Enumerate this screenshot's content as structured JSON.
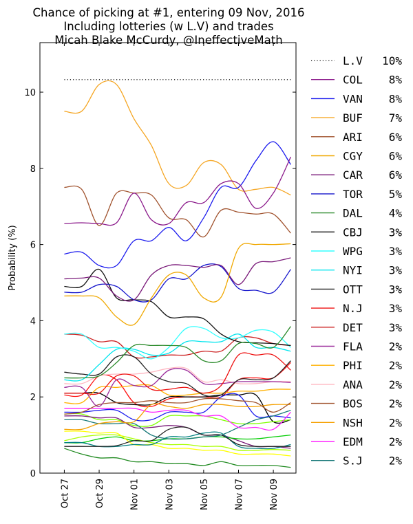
{
  "chart_data": {
    "type": "line",
    "title": [
      "Chance of picking at #1, entering 09 Nov, 2016",
      "Including lotteries (w L.V) and trades",
      "Micah Blake McCurdy, @IneffectiveMath"
    ],
    "xlabel": "",
    "ylabel": "Probability (%)",
    "ylim": [
      0,
      11.3
    ],
    "yticks": [
      "0",
      "2",
      "4",
      "6",
      "8",
      "10"
    ],
    "xlim": [
      -1.4,
      13.3
    ],
    "xticks": [
      "Oct 27",
      "Oct 29",
      "Nov 01",
      "Nov 03",
      "Nov 05",
      "Nov 07",
      "Nov 09"
    ],
    "grid": false,
    "legend_position": "outside-right",
    "x": [
      0,
      1,
      2,
      3,
      4,
      5,
      6,
      7,
      8,
      9,
      10,
      11,
      12,
      13
    ],
    "series": [
      {
        "name": "L.V",
        "pct": "10%",
        "color": "#333333",
        "style": "dotted",
        "values": [
          10.33,
          10.33,
          10.33,
          10.33,
          10.33,
          10.33,
          10.33,
          10.33,
          10.33,
          10.33,
          10.33,
          10.33,
          10.33,
          10.33
        ]
      },
      {
        "name": "COL",
        "pct": "8%",
        "color": "#8b1a8b",
        "values": [
          6.55,
          6.57,
          6.55,
          6.57,
          7.35,
          6.65,
          6.55,
          7.1,
          7.1,
          7.6,
          7.6,
          6.95,
          7.35,
          8.3
        ]
      },
      {
        "name": "VAN",
        "pct": "8%",
        "color": "#1a1aee",
        "values": [
          5.75,
          5.8,
          5.45,
          5.45,
          6.1,
          6.1,
          6.45,
          6.1,
          6.7,
          7.5,
          7.5,
          8.2,
          8.7,
          8.1
        ]
      },
      {
        "name": "BUF",
        "pct": "7%",
        "color": "#f5a623",
        "values": [
          9.5,
          9.5,
          10.2,
          10.2,
          9.3,
          8.6,
          7.6,
          7.55,
          8.15,
          8.1,
          7.45,
          7.45,
          7.5,
          7.3
        ]
      },
      {
        "name": "ARI",
        "pct": "6%",
        "color": "#a0522d",
        "values": [
          7.5,
          7.45,
          6.5,
          7.35,
          7.35,
          7.3,
          6.7,
          6.65,
          6.2,
          6.9,
          6.85,
          6.8,
          6.8,
          6.3
        ]
      },
      {
        "name": "CGY",
        "pct": "6%",
        "color": "#f0a800",
        "values": [
          4.65,
          4.65,
          4.6,
          4.1,
          3.9,
          4.6,
          5.2,
          5.2,
          4.6,
          4.62,
          5.9,
          6.0,
          6.0,
          6.02
        ]
      },
      {
        "name": "CAR",
        "pct": "6%",
        "color": "#7a1a7a",
        "values": [
          5.1,
          5.12,
          5.12,
          4.65,
          4.55,
          5.2,
          5.45,
          5.45,
          5.4,
          5.45,
          4.95,
          5.5,
          5.55,
          5.65
        ]
      },
      {
        "name": "TOR",
        "pct": "5%",
        "color": "#1515cc",
        "values": [
          4.75,
          4.75,
          4.95,
          4.9,
          4.55,
          4.55,
          5.1,
          5.1,
          5.45,
          5.42,
          4.85,
          4.8,
          4.75,
          5.35
        ]
      },
      {
        "name": "DAL",
        "pct": "4%",
        "color": "#2a8a2a",
        "values": [
          2.5,
          2.5,
          2.55,
          2.9,
          3.35,
          3.35,
          3.35,
          3.3,
          2.95,
          2.95,
          3.4,
          3.4,
          3.3,
          3.85
        ]
      },
      {
        "name": "CBJ",
        "pct": "3%",
        "color": "#111111",
        "values": [
          4.9,
          4.9,
          5.35,
          4.6,
          4.55,
          4.5,
          4.1,
          4.1,
          4.05,
          3.65,
          3.45,
          3.42,
          3.4,
          3.35
        ]
      },
      {
        "name": "WPG",
        "pct": "3%",
        "color": "#33ffff",
        "values": [
          3.65,
          3.65,
          3.3,
          3.3,
          3.2,
          3.0,
          3.3,
          3.8,
          3.8,
          3.55,
          3.55,
          3.75,
          3.7,
          3.3
        ]
      },
      {
        "name": "NYI",
        "pct": "3%",
        "color": "#00e5ee",
        "values": [
          2.45,
          2.45,
          2.85,
          3.25,
          3.25,
          3.1,
          3.15,
          3.45,
          3.45,
          3.45,
          3.65,
          3.3,
          3.3,
          3.2
        ]
      },
      {
        "name": "OTT",
        "pct": "3%",
        "color": "#222222",
        "values": [
          2.65,
          2.6,
          2.6,
          3.05,
          3.05,
          2.6,
          2.4,
          2.35,
          2.05,
          2.05,
          2.45,
          2.45,
          2.5,
          2.95
        ]
      },
      {
        "name": "N.J",
        "pct": "3%",
        "color": "#ee1111",
        "values": [
          2.1,
          2.1,
          2.1,
          2.55,
          2.55,
          2.2,
          2.2,
          2.25,
          2.1,
          2.3,
          3.1,
          3.1,
          3.1,
          2.7
        ]
      },
      {
        "name": "DET",
        "pct": "3%",
        "color": "#cc2222",
        "values": [
          3.65,
          3.62,
          3.45,
          3.45,
          3.05,
          3.05,
          3.1,
          3.1,
          3.2,
          3.2,
          3.55,
          3.55,
          3.4,
          3.35
        ]
      },
      {
        "name": "FLA",
        "pct": "2%",
        "color": "#9a2a9a",
        "values": [
          2.25,
          2.25,
          1.75,
          2.45,
          2.3,
          2.3,
          2.7,
          2.7,
          2.35,
          2.35,
          2.4,
          2.4,
          2.4,
          2.38
        ]
      },
      {
        "name": "PHI",
        "pct": "2%",
        "color": "#ffb000",
        "values": [
          1.85,
          1.85,
          2.25,
          2.25,
          2.3,
          2.3,
          2.05,
          2.05,
          2.1,
          2.1,
          2.15,
          2.15,
          2.2,
          2.2
        ]
      },
      {
        "name": "ANA",
        "pct": "2%",
        "color": "#ffb6c1",
        "values": [
          2.35,
          2.35,
          2.55,
          2.6,
          2.6,
          2.65,
          2.75,
          2.75,
          2.4,
          2.45,
          2.35,
          2.35,
          2.4,
          2.4
        ]
      },
      {
        "name": "BOS",
        "pct": "2%",
        "color": "#a0522d",
        "values": [
          1.55,
          1.6,
          1.8,
          1.85,
          1.85,
          1.9,
          1.85,
          1.85,
          1.95,
          1.95,
          1.9,
          1.85,
          1.6,
          1.85
        ]
      },
      {
        "name": "NSH",
        "pct": "2%",
        "color": "#f5a000",
        "values": [
          1.15,
          1.15,
          1.3,
          1.35,
          1.35,
          1.8,
          1.75,
          1.7,
          1.8,
          1.8,
          1.75,
          1.75,
          1.8,
          1.8
        ]
      },
      {
        "name": "EDM",
        "pct": "2%",
        "color": "#ff22ff",
        "values": [
          1.7,
          1.7,
          1.7,
          1.7,
          1.7,
          1.6,
          1.65,
          1.65,
          1.5,
          1.5,
          1.2,
          1.2,
          1.15,
          1.6
        ]
      },
      {
        "name": "S.J",
        "pct": "2%",
        "color": "#1a7a7a",
        "values": [
          1.4,
          1.4,
          1.3,
          1.3,
          1.3,
          1.0,
          0.9,
          0.9,
          0.95,
          1.0,
          1.2,
          1.4,
          1.5,
          1.65
        ]
      }
    ],
    "unlabeled_series": [
      {
        "color": "#ff1111",
        "values": [
          2.05,
          2.05,
          2.55,
          2.45,
          1.85,
          1.75,
          1.95,
          2.0,
          2.0,
          2.0,
          2.45,
          2.5,
          2.5,
          2.9
        ]
      },
      {
        "color": "#000000",
        "values": [
          2.1,
          2.1,
          2.1,
          1.85,
          1.8,
          1.8,
          2.0,
          2.0,
          2.0,
          2.05,
          2.05,
          2.05,
          1.35,
          1.4
        ]
      },
      {
        "color": "#1a1aee",
        "values": [
          1.6,
          1.6,
          1.65,
          1.65,
          1.4,
          1.4,
          1.6,
          1.6,
          1.6,
          2.0,
          2.05,
          1.5,
          1.5,
          1.45
        ]
      },
      {
        "color": "#7fff00",
        "values": [
          1.55,
          1.55,
          1.4,
          1.4,
          1.25,
          1.25,
          1.5,
          1.5,
          1.5,
          1.4,
          1.3,
          1.3,
          1.35,
          1.4
        ]
      },
      {
        "color": "#7a1a7a",
        "values": [
          1.5,
          1.5,
          1.45,
          1.45,
          1.2,
          1.2,
          1.25,
          1.2,
          1.0,
          1.0,
          0.85,
          0.7,
          0.7,
          0.65
        ]
      },
      {
        "color": "#00cc00",
        "values": [
          0.8,
          0.8,
          0.9,
          0.95,
          0.85,
          0.85,
          0.9,
          0.9,
          0.95,
          0.95,
          0.9,
          0.9,
          0.95,
          1.0
        ]
      },
      {
        "color": "#aaff00",
        "values": [
          0.85,
          0.95,
          1.0,
          1.0,
          0.9,
          0.8,
          0.75,
          0.75,
          0.7,
          0.7,
          0.6,
          0.6,
          0.62,
          0.6
        ]
      },
      {
        "color": "#ffff00",
        "values": [
          1.1,
          1.1,
          1.05,
          1.05,
          0.75,
          0.75,
          0.65,
          0.65,
          0.6,
          0.6,
          0.5,
          0.5,
          0.5,
          0.45
        ]
      },
      {
        "color": "#008080",
        "values": [
          0.8,
          0.8,
          0.7,
          0.7,
          0.75,
          0.75,
          0.95,
          0.95,
          1.05,
          1.05,
          0.7,
          0.65,
          0.65,
          0.75
        ]
      },
      {
        "color": "#222222",
        "values": [
          0.7,
          0.7,
          0.7,
          0.72,
          0.85,
          0.85,
          1.15,
          1.2,
          1.0,
          1.0,
          0.75,
          0.7,
          0.7,
          0.7
        ]
      },
      {
        "color": "#228b22",
        "values": [
          0.65,
          0.5,
          0.4,
          0.4,
          0.3,
          0.3,
          0.25,
          0.25,
          0.2,
          0.3,
          0.2,
          0.2,
          0.2,
          0.15
        ]
      }
    ]
  }
}
